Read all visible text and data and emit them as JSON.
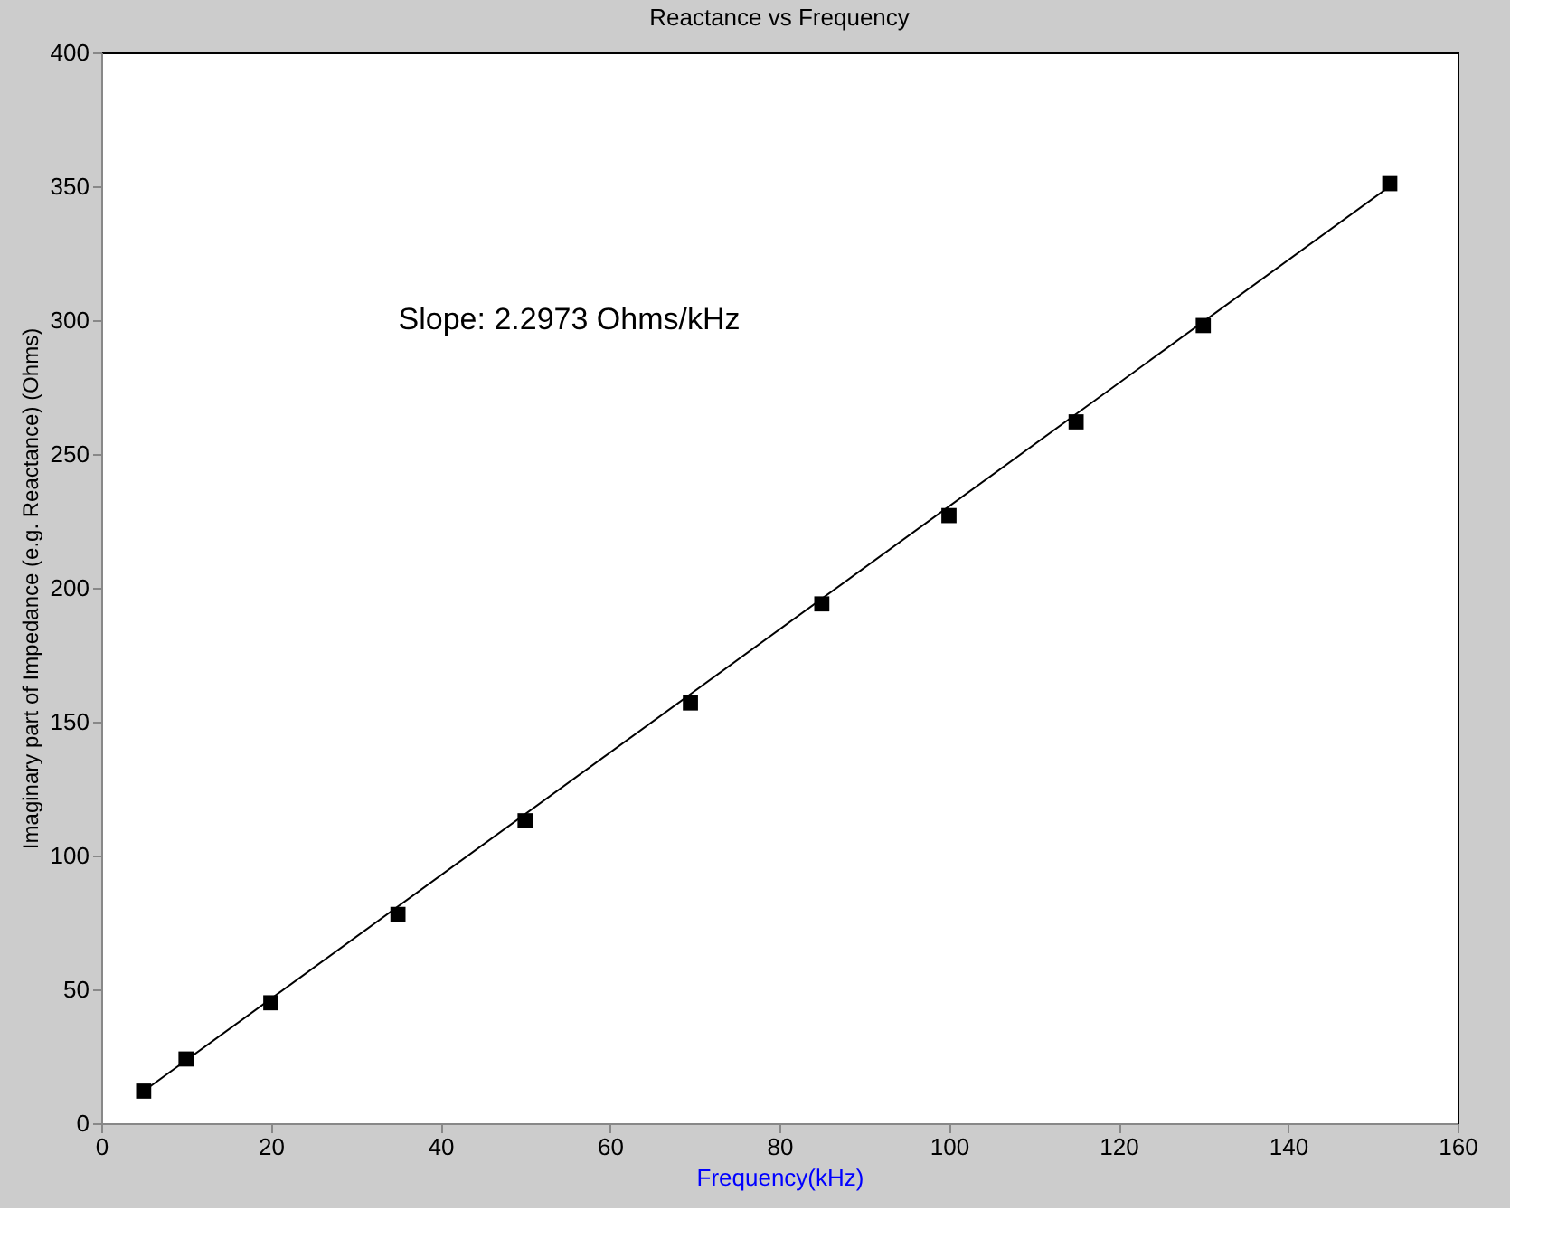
{
  "chart_data": {
    "type": "scatter",
    "title": "Reactance vs Frequency",
    "xlabel": "Frequency(kHz)",
    "ylabel": "Imaginary part of Impedance (e.g. Reactance) (Ohms)",
    "x": [
      5,
      10,
      20,
      35,
      50,
      69.5,
      85,
      100,
      115,
      130,
      152
    ],
    "series": [
      {
        "color": "#000000",
        "marker": "square",
        "values": [
          12,
          24,
          45,
          78,
          113,
          157,
          194,
          227,
          262,
          298,
          351
        ]
      },
      {
        "type": "line",
        "color": "#000000",
        "line_style": "solid",
        "x": [
          5,
          152
        ],
        "values": [
          12,
          350
        ]
      }
    ],
    "xlim": [
      0,
      160
    ],
    "xticks": [
      0,
      20,
      40,
      60,
      80,
      100,
      120,
      140,
      160
    ],
    "ylim": [
      0,
      400
    ],
    "yticks": [
      0,
      50,
      100,
      150,
      200,
      250,
      300,
      350,
      400
    ],
    "grid": false,
    "annotations": [
      "Slope: 2.2973 Ohms/kHz"
    ]
  }
}
